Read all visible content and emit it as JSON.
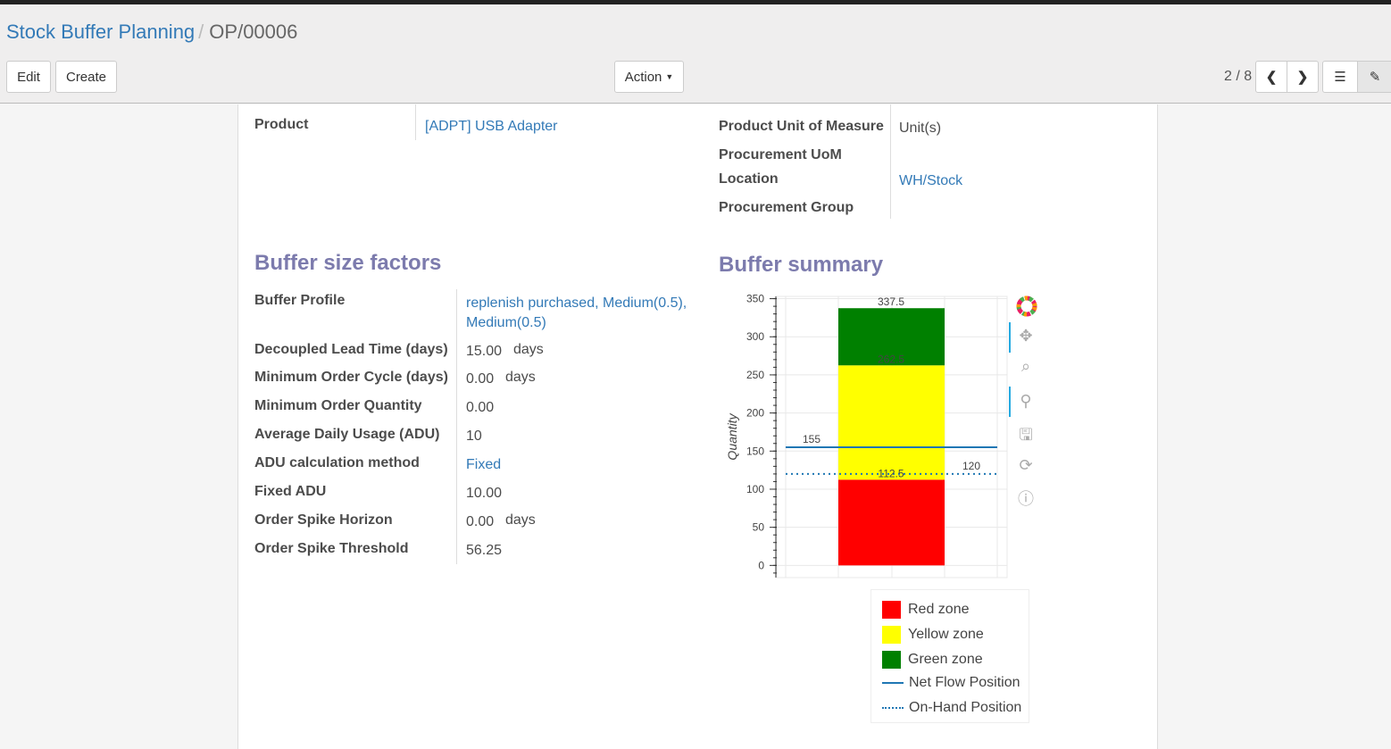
{
  "breadcrumb": {
    "parent": "Stock Buffer Planning",
    "current": "OP/00006"
  },
  "toolbar": {
    "edit": "Edit",
    "create": "Create",
    "action": "Action",
    "pager": "2 / 8"
  },
  "header_fields": {
    "product_label": "Product",
    "product_value": "[ADPT] USB Adapter",
    "uom_label": "Product Unit of Measure",
    "uom_value": "Unit(s)",
    "proc_uom_label": "Procurement UoM",
    "location_label": "Location",
    "location_value": "WH/Stock",
    "proc_group_label": "Procurement Group"
  },
  "factors": {
    "title": "Buffer size factors",
    "rows": [
      {
        "label": "Buffer Profile",
        "value": "replenish purchased, Medium(0.5),",
        "value2": "Medium(0.5)"
      },
      {
        "label": "Decoupled Lead Time (days)",
        "value": "15.00",
        "unit": "days"
      },
      {
        "label": "Minimum Order Cycle (days)",
        "value": "0.00",
        "unit": "days"
      },
      {
        "label": "Minimum Order Quantity",
        "value": "0.00"
      },
      {
        "label": "Average Daily Usage (ADU)",
        "value": "10"
      },
      {
        "label": "ADU calculation method",
        "value": "Fixed"
      },
      {
        "label": "Fixed ADU",
        "value": "10.00"
      },
      {
        "label": "Order Spike Horizon",
        "value": "0.00",
        "unit": "days"
      },
      {
        "label": "Order Spike Threshold",
        "value": "56.25"
      }
    ]
  },
  "summary": {
    "title": "Buffer summary"
  },
  "chart_data": {
    "type": "bar",
    "ylabel": "Quantity",
    "ylim": [
      -16,
      353
    ],
    "yticks": [
      0,
      50,
      100,
      150,
      200,
      250,
      300,
      350
    ],
    "grid": true,
    "stack": [
      {
        "name": "Red zone",
        "from": 0,
        "to": 112.5,
        "color": "#ff0000",
        "label": "112.5"
      },
      {
        "name": "Yellow zone",
        "from": 112.5,
        "to": 262.5,
        "color": "#ffff00",
        "label": "262.5"
      },
      {
        "name": "Green zone",
        "from": 262.5,
        "to": 337.5,
        "color": "#008000",
        "label": "337.5"
      }
    ],
    "lines": [
      {
        "name": "Net Flow Position",
        "value": 155,
        "style": "solid",
        "color": "#1f77b4",
        "label": "155"
      },
      {
        "name": "On-Hand Position",
        "value": 120,
        "style": "dotted",
        "color": "#1f77b4",
        "label": "120"
      }
    ],
    "legend": "bottom"
  }
}
